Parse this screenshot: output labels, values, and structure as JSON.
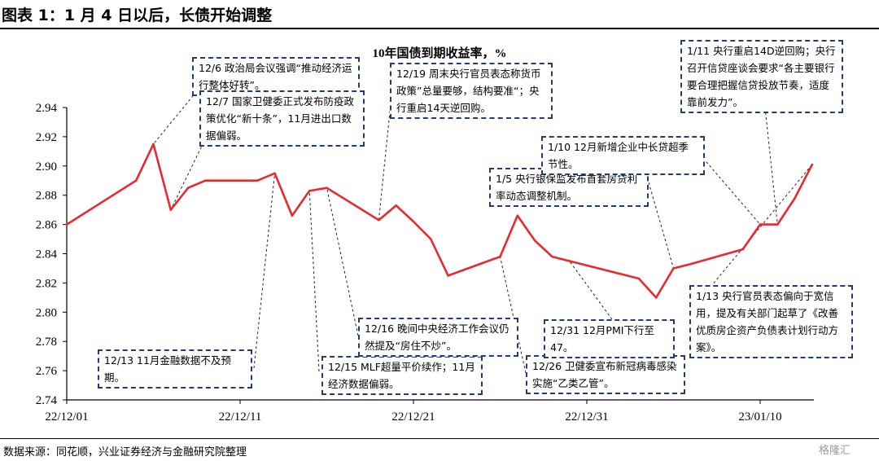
{
  "figure_title": "图表 1：1 月 4 日以后，长债开始调整",
  "source": "数据来源：同花顺，兴业证券经济与金融研究院整理",
  "watermark": "格隆汇",
  "colors": {
    "line": "#e8292f",
    "annotation_border": "#1f3b78",
    "axis": "#000000"
  },
  "chart_data": {
    "type": "line",
    "title": "10年国债到期收益率，%",
    "xlabel": "",
    "ylabel": "",
    "ylim": [
      2.74,
      2.94
    ],
    "yticks": [
      "2.74",
      "2.76",
      "2.78",
      "2.80",
      "2.82",
      "2.84",
      "2.86",
      "2.88",
      "2.90",
      "2.92",
      "2.94"
    ],
    "xticks": [
      "22/12/01",
      "22/12/11",
      "22/12/21",
      "22/12/31",
      "23/01/10"
    ],
    "grid": false,
    "legend": "none",
    "x": [
      "2022-12-01",
      "2022-12-05",
      "2022-12-06",
      "2022-12-07",
      "2022-12-08",
      "2022-12-09",
      "2022-12-12",
      "2022-12-13",
      "2022-12-14",
      "2022-12-15",
      "2022-12-16",
      "2022-12-19",
      "2022-12-20",
      "2022-12-21",
      "2022-12-22",
      "2022-12-23",
      "2022-12-26",
      "2022-12-27",
      "2022-12-28",
      "2022-12-29",
      "2022-12-30",
      "2023-01-03",
      "2023-01-04",
      "2023-01-05",
      "2023-01-06",
      "2023-01-09",
      "2023-01-10",
      "2023-01-11",
      "2023-01-12",
      "2023-01-13"
    ],
    "series": [
      {
        "values": [
          2.86,
          2.89,
          2.915,
          2.87,
          2.885,
          2.89,
          2.89,
          2.895,
          2.866,
          2.883,
          2.885,
          2.863,
          2.873,
          2.862,
          2.85,
          2.825,
          2.838,
          2.866,
          2.849,
          2.838,
          2.835,
          2.823,
          2.81,
          2.83,
          2.833,
          2.843,
          2.86,
          2.86,
          2.878,
          2.901
        ]
      }
    ],
    "annotations": [
      {
        "text": "12/6 政治局会议强调“推动经济运行整体好转”。",
        "date": "2022-12-06"
      },
      {
        "text": "12/7 国家卫健委正式发布防疫政策优化“新十条”，11月进出口数据偏弱。",
        "date": "2022-12-07"
      },
      {
        "text": "12/13 11月金融数据不及预期。",
        "date": "2022-12-13"
      },
      {
        "text": "12/15 MLF超量平价续作；11月经济数据偏弱。",
        "date": "2022-12-15"
      },
      {
        "text": "12/16 晚间中央经济工作会议仍然提及“房住不炒”。",
        "date": "2022-12-16"
      },
      {
        "text": "12/19 周末央行官员表态称货币政策”总量要够，结构要准“；央行重启14天逆回购。",
        "date": "2022-12-19"
      },
      {
        "text": "12/26 卫健委宣布新冠病毒感染实施“乙类乙管”。",
        "date": "2022-12-26"
      },
      {
        "text": "12/31 12月PMI下行至47。",
        "date": "2022-12-30"
      },
      {
        "text": "1/5 央行银保监发布首套房贷利率动态调整机制。",
        "date": "2023-01-05"
      },
      {
        "text": "1/10 12月新增企业中长贷超季节性。",
        "date": "2023-01-10"
      },
      {
        "text": "1/11 央行重启14D逆回购；央行召开信贷座谈会要求“各主要银行要合理把握信贷投放节奏，适度靠前发力”。",
        "date": "2023-01-11"
      },
      {
        "text": "1/13 央行官员表态偏向于宽信用，提及有关部门起草了《改善优质房企资产负债表计划行动方案》。",
        "date": "2023-01-13"
      }
    ]
  }
}
